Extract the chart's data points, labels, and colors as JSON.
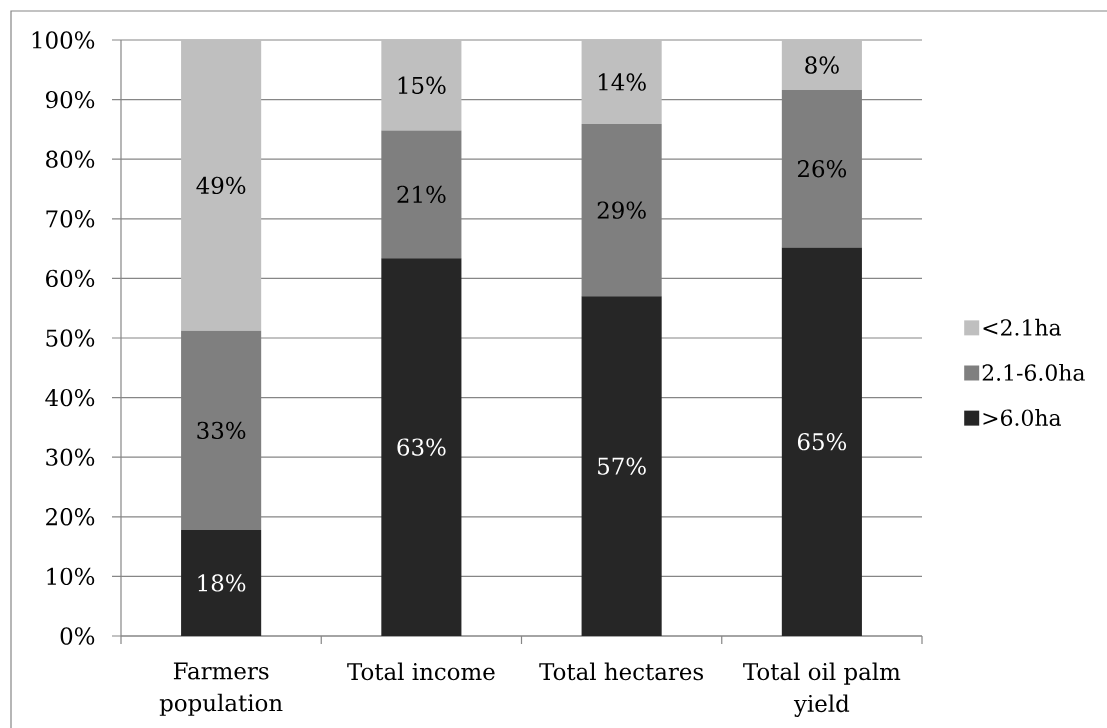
{
  "chart_data": {
    "type": "bar",
    "stacked": true,
    "categories": [
      "Farmers population",
      "Total income",
      "Total hectares",
      "Total oil palm yield"
    ],
    "series": [
      {
        "name": ">6.0ha",
        "color": "#262626",
        "values": [
          17.8,
          63.4,
          57.0,
          65.2
        ],
        "value_labels": [
          "18%",
          "63%",
          "57%",
          "65%"
        ]
      },
      {
        "name": "2.1-6.0ha",
        "color": "#7f7f7f",
        "values": [
          33.4,
          21.4,
          28.9,
          26.4
        ],
        "value_labels": [
          "33%",
          "21%",
          "29%",
          "26%"
        ]
      },
      {
        "name": "<2.1ha",
        "color": "#bfbfbf",
        "values": [
          48.8,
          15.2,
          14.1,
          8.4
        ],
        "value_labels": [
          "49%",
          "15%",
          "14%",
          "8%"
        ]
      }
    ],
    "ylim": [
      0,
      100
    ],
    "yticks": [
      {
        "value": 0,
        "label": "0%"
      },
      {
        "value": 10,
        "label": "10%"
      },
      {
        "value": 20,
        "label": "20%"
      },
      {
        "value": 30,
        "label": "30%"
      },
      {
        "value": 40,
        "label": "40%"
      },
      {
        "value": 50,
        "label": "50%"
      },
      {
        "value": 60,
        "label": "60%"
      },
      {
        "value": 70,
        "label": "70%"
      },
      {
        "value": 80,
        "label": "80%"
      },
      {
        "value": 90,
        "label": "90%"
      },
      {
        "value": 100,
        "label": "100%"
      }
    ],
    "grid": "y",
    "legend": "right"
  }
}
